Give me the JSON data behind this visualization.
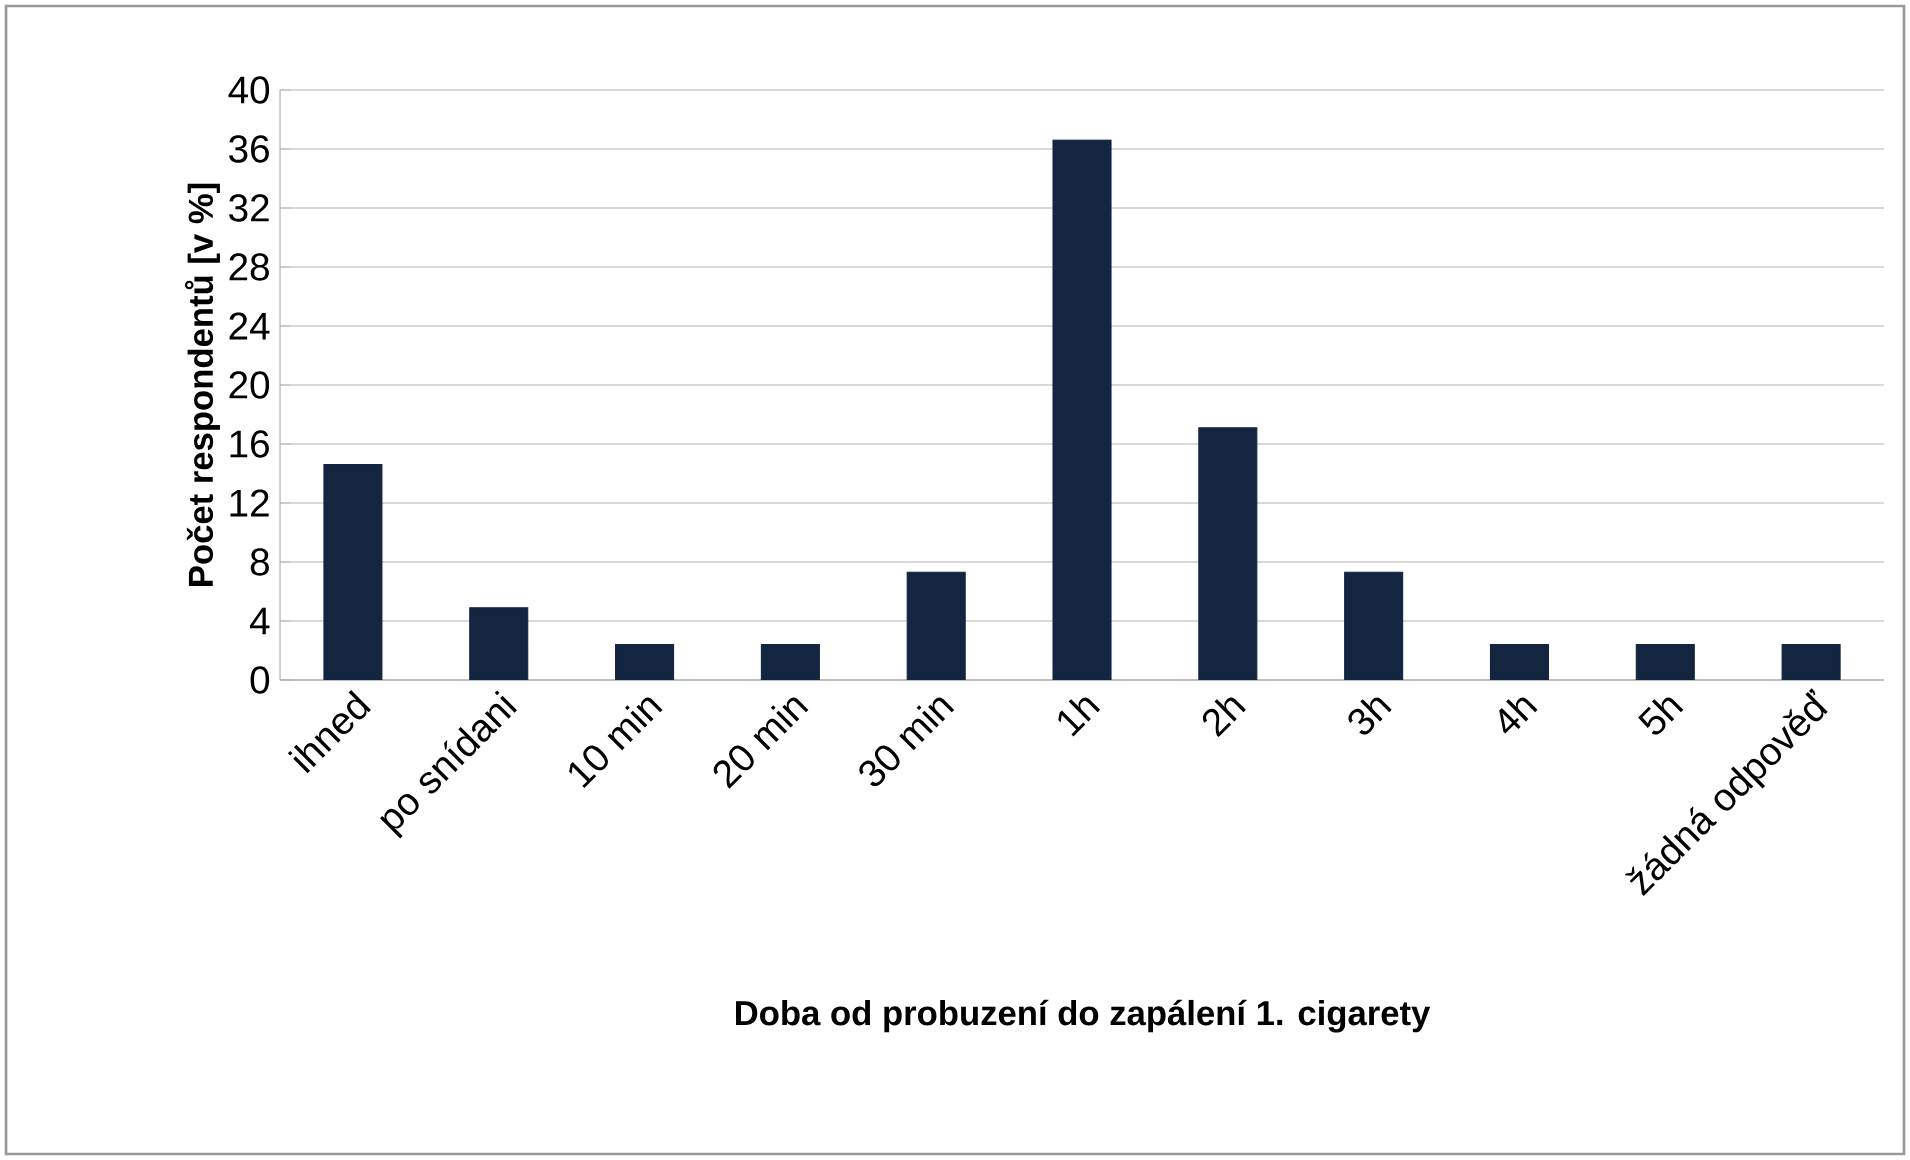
{
  "chart_data": {
    "type": "bar",
    "xlabel": "Doba od probuzení do zapálení 1. cigarety",
    "ylabel": "Počet respondentů [v %]",
    "categories": [
      "ihned",
      "po snídani",
      "10 min",
      "20 min",
      "30 min",
      "1h",
      "2h",
      "3h",
      "4h",
      "5h",
      "žádná odpověď"
    ],
    "values": [
      14.6,
      4.9,
      2.4,
      2.4,
      7.3,
      36.6,
      17.1,
      7.3,
      2.4,
      2.4,
      2.4
    ],
    "color": "#13253f",
    "ylim": [
      0,
      40
    ],
    "yticks": [
      0,
      4,
      8,
      12,
      16,
      20,
      24,
      28,
      32,
      36,
      40
    ],
    "grid": "y"
  }
}
